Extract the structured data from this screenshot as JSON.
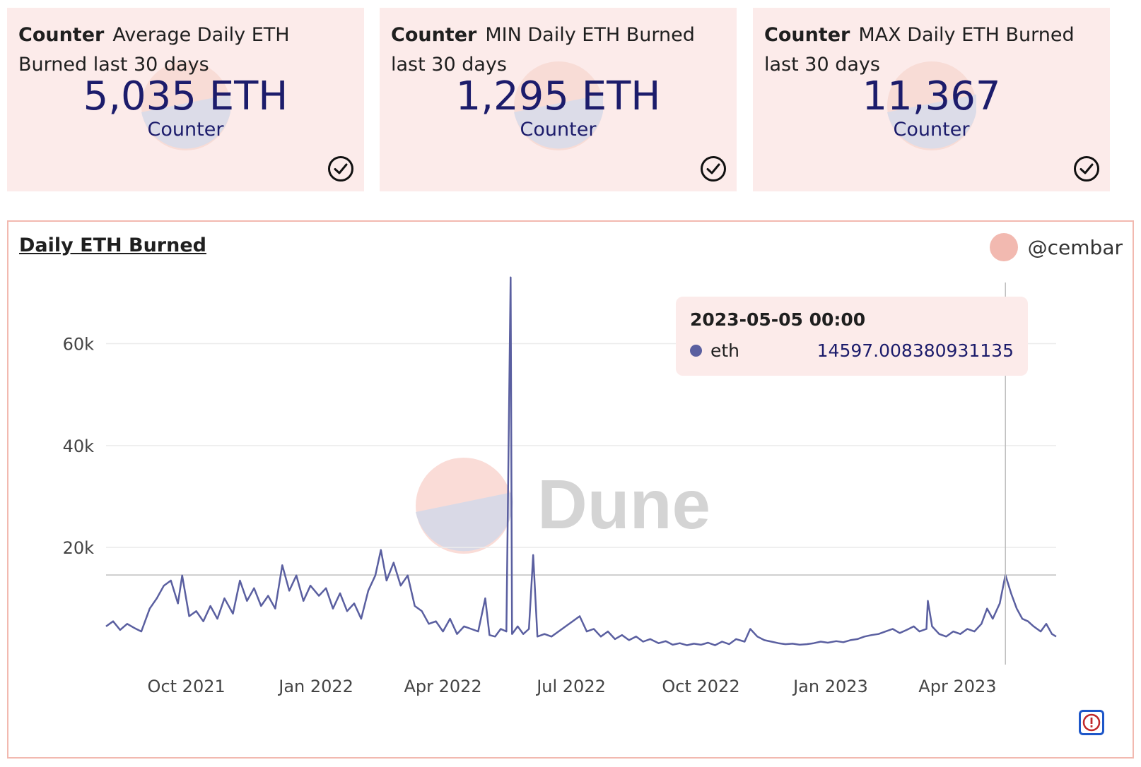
{
  "cards": [
    {
      "kind": "Counter",
      "title": "Average Daily ETH Burned last 30 days",
      "value": "5,035 ETH",
      "sub": "Counter"
    },
    {
      "kind": "Counter",
      "title": "MIN Daily ETH Burned last 30 days",
      "value": "1,295 ETH",
      "sub": "Counter"
    },
    {
      "kind": "Counter",
      "title": "MAX Daily ETH Burned last 30 days",
      "value": "11,367",
      "sub": "Counter"
    }
  ],
  "panel": {
    "title": "Daily ETH Burned",
    "author": "@cembar",
    "watermark": "Dune"
  },
  "tooltip": {
    "date": "2023-05-05 00:00",
    "series": "eth",
    "value": "14597.008380931135"
  },
  "colors": {
    "series": "#5a5fa0",
    "card_bg": "#fcebea",
    "accent": "#f2b9b0",
    "value_text": "#1c1c6b"
  },
  "icons": {
    "card_status": "check-circle-icon",
    "alert": "alert-icon"
  },
  "chart_data": {
    "type": "line",
    "title": "Daily ETH Burned",
    "xlabel": "",
    "ylabel": "",
    "x_range": [
      "2021-08-05",
      "2023-06-10"
    ],
    "ylim": [
      -3000,
      72000
    ],
    "y_ticks": [
      20000,
      40000,
      60000
    ],
    "y_tick_labels": [
      "20k",
      "40k",
      "60k"
    ],
    "x_ticks": [
      "2021-10-01",
      "2022-01-01",
      "2022-04-01",
      "2022-07-01",
      "2022-10-01",
      "2023-01-01",
      "2023-04-01"
    ],
    "x_tick_labels": [
      "Oct 2021",
      "Jan 2022",
      "Apr 2022",
      "Jul 2022",
      "Oct 2022",
      "Jan 2023",
      "Apr 2023"
    ],
    "grid": true,
    "reference_line": 14597,
    "hover_date": "2023-05-05",
    "series": [
      {
        "name": "eth",
        "points": [
          [
            "2021-08-05",
            4500
          ],
          [
            "2021-08-10",
            5500
          ],
          [
            "2021-08-15",
            3800
          ],
          [
            "2021-08-20",
            5000
          ],
          [
            "2021-08-25",
            4200
          ],
          [
            "2021-08-30",
            3500
          ],
          [
            "2021-09-05",
            8000
          ],
          [
            "2021-09-10",
            10000
          ],
          [
            "2021-09-15",
            12500
          ],
          [
            "2021-09-20",
            13500
          ],
          [
            "2021-09-25",
            9000
          ],
          [
            "2021-09-28",
            14500
          ],
          [
            "2021-10-03",
            6500
          ],
          [
            "2021-10-08",
            7500
          ],
          [
            "2021-10-13",
            5500
          ],
          [
            "2021-10-18",
            8500
          ],
          [
            "2021-10-23",
            6000
          ],
          [
            "2021-10-28",
            10000
          ],
          [
            "2021-11-03",
            7000
          ],
          [
            "2021-11-08",
            13500
          ],
          [
            "2021-11-13",
            9500
          ],
          [
            "2021-11-18",
            12000
          ],
          [
            "2021-11-23",
            8500
          ],
          [
            "2021-11-28",
            10500
          ],
          [
            "2021-12-03",
            8000
          ],
          [
            "2021-12-08",
            16500
          ],
          [
            "2021-12-13",
            11500
          ],
          [
            "2021-12-18",
            14500
          ],
          [
            "2021-12-23",
            9500
          ],
          [
            "2021-12-28",
            12500
          ],
          [
            "2022-01-03",
            10500
          ],
          [
            "2022-01-08",
            12000
          ],
          [
            "2022-01-13",
            8000
          ],
          [
            "2022-01-18",
            11000
          ],
          [
            "2022-01-23",
            7500
          ],
          [
            "2022-01-28",
            9000
          ],
          [
            "2022-02-02",
            6000
          ],
          [
            "2022-02-07",
            11500
          ],
          [
            "2022-02-12",
            14500
          ],
          [
            "2022-02-16",
            19500
          ],
          [
            "2022-02-20",
            13500
          ],
          [
            "2022-02-25",
            17000
          ],
          [
            "2022-03-02",
            12500
          ],
          [
            "2022-03-07",
            14500
          ],
          [
            "2022-03-12",
            8500
          ],
          [
            "2022-03-17",
            7500
          ],
          [
            "2022-03-22",
            5000
          ],
          [
            "2022-03-27",
            5500
          ],
          [
            "2022-04-01",
            3500
          ],
          [
            "2022-04-06",
            6000
          ],
          [
            "2022-04-11",
            3000
          ],
          [
            "2022-04-16",
            4500
          ],
          [
            "2022-04-21",
            4000
          ],
          [
            "2022-04-26",
            3500
          ],
          [
            "2022-05-01",
            10000
          ],
          [
            "2022-05-04",
            2800
          ],
          [
            "2022-05-08",
            2500
          ],
          [
            "2022-05-12",
            4000
          ],
          [
            "2022-05-16",
            3500
          ],
          [
            "2022-05-19",
            73000
          ],
          [
            "2022-05-20",
            3000
          ],
          [
            "2022-05-24",
            4500
          ],
          [
            "2022-05-28",
            3000
          ],
          [
            "2022-06-01",
            4000
          ],
          [
            "2022-06-04",
            18500
          ],
          [
            "2022-06-07",
            2500
          ],
          [
            "2022-06-12",
            3000
          ],
          [
            "2022-06-17",
            2500
          ],
          [
            "2022-06-22",
            3500
          ],
          [
            "2022-06-27",
            4500
          ],
          [
            "2022-07-02",
            5500
          ],
          [
            "2022-07-07",
            6500
          ],
          [
            "2022-07-12",
            3500
          ],
          [
            "2022-07-17",
            4000
          ],
          [
            "2022-07-22",
            2500
          ],
          [
            "2022-07-27",
            3500
          ],
          [
            "2022-08-01",
            2000
          ],
          [
            "2022-08-06",
            2800
          ],
          [
            "2022-08-11",
            1800
          ],
          [
            "2022-08-16",
            2500
          ],
          [
            "2022-08-21",
            1500
          ],
          [
            "2022-08-26",
            2000
          ],
          [
            "2022-09-01",
            1200
          ],
          [
            "2022-09-06",
            1600
          ],
          [
            "2022-09-11",
            900
          ],
          [
            "2022-09-16",
            1200
          ],
          [
            "2022-09-21",
            800
          ],
          [
            "2022-09-26",
            1100
          ],
          [
            "2022-10-01",
            900
          ],
          [
            "2022-10-06",
            1300
          ],
          [
            "2022-10-11",
            800
          ],
          [
            "2022-10-16",
            1500
          ],
          [
            "2022-10-21",
            1000
          ],
          [
            "2022-10-26",
            2000
          ],
          [
            "2022-11-01",
            1500
          ],
          [
            "2022-11-05",
            4000
          ],
          [
            "2022-11-10",
            2500
          ],
          [
            "2022-11-15",
            1800
          ],
          [
            "2022-11-20",
            1500
          ],
          [
            "2022-11-25",
            1200
          ],
          [
            "2022-11-30",
            1000
          ],
          [
            "2022-12-05",
            1100
          ],
          [
            "2022-12-10",
            900
          ],
          [
            "2022-12-15",
            1000
          ],
          [
            "2022-12-20",
            1200
          ],
          [
            "2022-12-25",
            1500
          ],
          [
            "2022-12-30",
            1300
          ],
          [
            "2023-01-05",
            1600
          ],
          [
            "2023-01-10",
            1400
          ],
          [
            "2023-01-15",
            1800
          ],
          [
            "2023-01-20",
            2000
          ],
          [
            "2023-01-25",
            2500
          ],
          [
            "2023-01-30",
            2800
          ],
          [
            "2023-02-04",
            3000
          ],
          [
            "2023-02-09",
            3500
          ],
          [
            "2023-02-14",
            4000
          ],
          [
            "2023-02-19",
            3200
          ],
          [
            "2023-02-24",
            3800
          ],
          [
            "2023-03-01",
            4500
          ],
          [
            "2023-03-05",
            3500
          ],
          [
            "2023-03-10",
            4000
          ],
          [
            "2023-03-11",
            9500
          ],
          [
            "2023-03-14",
            4500
          ],
          [
            "2023-03-19",
            3000
          ],
          [
            "2023-03-24",
            2500
          ],
          [
            "2023-03-29",
            3500
          ],
          [
            "2023-04-03",
            3000
          ],
          [
            "2023-04-08",
            4000
          ],
          [
            "2023-04-13",
            3500
          ],
          [
            "2023-04-18",
            5000
          ],
          [
            "2023-04-22",
            8000
          ],
          [
            "2023-04-26",
            6000
          ],
          [
            "2023-05-01",
            9000
          ],
          [
            "2023-05-05",
            14597
          ],
          [
            "2023-05-09",
            11000
          ],
          [
            "2023-05-13",
            8000
          ],
          [
            "2023-05-17",
            6000
          ],
          [
            "2023-05-21",
            5500
          ],
          [
            "2023-05-25",
            4500
          ],
          [
            "2023-05-30",
            3500
          ],
          [
            "2023-06-03",
            5000
          ],
          [
            "2023-06-07",
            3000
          ],
          [
            "2023-06-10",
            2500
          ]
        ]
      }
    ]
  }
}
